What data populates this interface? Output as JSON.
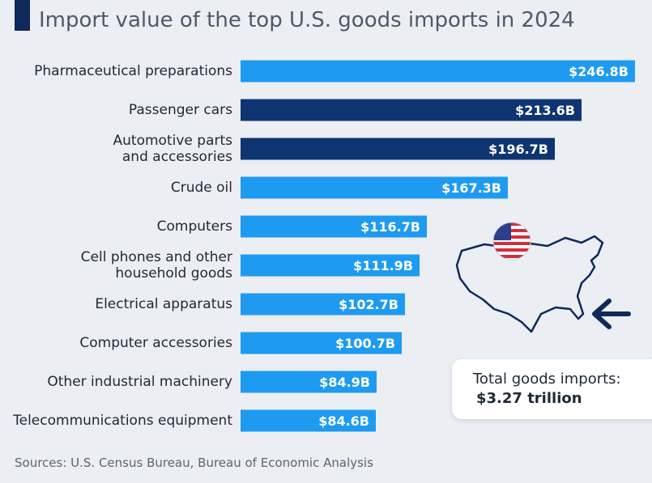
{
  "header": {
    "subtitle": "Import value of the top U.S. goods imports in 2024"
  },
  "chart_data": {
    "type": "bar",
    "orientation": "horizontal",
    "title": "Import value of the top U.S. goods imports in 2024",
    "unit": "billion USD",
    "categories": [
      [
        "Pharmaceutical preparations"
      ],
      [
        "Passenger cars"
      ],
      [
        "Automotive parts",
        "and accessories"
      ],
      [
        "Crude oil"
      ],
      [
        "Computers"
      ],
      [
        "Cell phones and other",
        "household goods"
      ],
      [
        "Electrical apparatus"
      ],
      [
        "Computer accessories"
      ],
      [
        "Other industrial machinery"
      ],
      [
        "Telecommunications equipment"
      ]
    ],
    "values": [
      246.8,
      213.6,
      196.7,
      167.3,
      116.7,
      111.9,
      102.7,
      100.7,
      84.9,
      84.6
    ],
    "value_labels": [
      "$246.8B",
      "$213.6B",
      "$196.7B",
      "$167.3B",
      "$116.7B",
      "$111.9B",
      "$102.7B",
      "$100.7B",
      "$84.9B",
      "$84.6B"
    ],
    "highlight": [
      false,
      true,
      true,
      false,
      false,
      false,
      false,
      false,
      false,
      false
    ],
    "colors": {
      "default": "#1e9bf0",
      "highlight": "#0f3472"
    }
  },
  "annotation": {
    "total_label": "Total goods imports:",
    "total_value": "$3.27 trillion"
  },
  "map_icons": {
    "flag": "us-flag-icon",
    "outline": "us-map-outline-icon",
    "arrow": "arrow-left-icon",
    "colors": {
      "navy": "#0f2a5a",
      "red": "#d22d3d",
      "flag_blue": "#2b3f8c"
    }
  },
  "footer": {
    "source": "Sources: U.S. Census Bureau, Bureau of Economic Analysis"
  }
}
